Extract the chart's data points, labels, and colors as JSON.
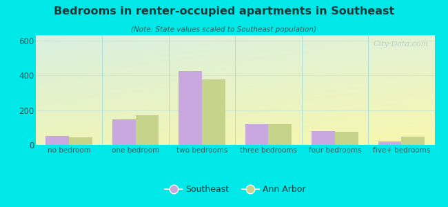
{
  "title": "Bedrooms in renter-occupied apartments in Southeast",
  "subtitle": "(Note: State values scaled to Southeast population)",
  "categories": [
    "no bedroom",
    "one bedroom",
    "two bedrooms",
    "three bedrooms",
    "four bedrooms",
    "five+ bedrooms"
  ],
  "southeast_values": [
    50,
    145,
    425,
    120,
    78,
    18
  ],
  "ann_arbor_values": [
    45,
    170,
    375,
    118,
    75,
    47
  ],
  "southeast_color": "#c9a8e0",
  "ann_arbor_color": "#c5d48a",
  "background_outer": "#00e8e8",
  "ylim": [
    0,
    630
  ],
  "yticks": [
    0,
    200,
    400,
    600
  ],
  "bar_width": 0.35,
  "watermark": "City-Data.com",
  "legend_southeast": "Southeast",
  "legend_ann_arbor": "Ann Arbor",
  "title_color": "#1a3a3a",
  "subtitle_color": "#2a5a5a",
  "tick_color": "#2a5a5a",
  "grid_color": "#d0e8d0",
  "bg_top_left": "#cceedd",
  "bg_bottom_right": "#eef5d8"
}
